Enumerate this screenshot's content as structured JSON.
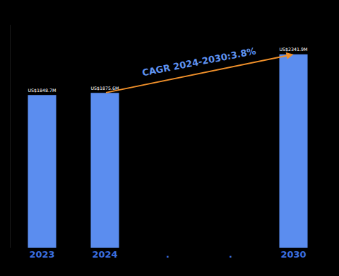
{
  "chart_data": {
    "type": "bar",
    "categories": [
      "2023",
      "2024",
      ".",
      ".",
      "2030"
    ],
    "values": [
      1848.7,
      1875.6,
      null,
      null,
      2341.9
    ],
    "value_labels": [
      "US$1848.7M",
      "US$1875.6M",
      null,
      null,
      "US$2341.9M"
    ],
    "data_labels": true,
    "color": "#5b8def",
    "ylim": [
      0,
      2700
    ],
    "tick_labels": "x",
    "grid": false,
    "annotations": [
      {
        "text": "CAGR 2024-2030:3.8%",
        "from": "2024",
        "to": "2030"
      }
    ]
  }
}
